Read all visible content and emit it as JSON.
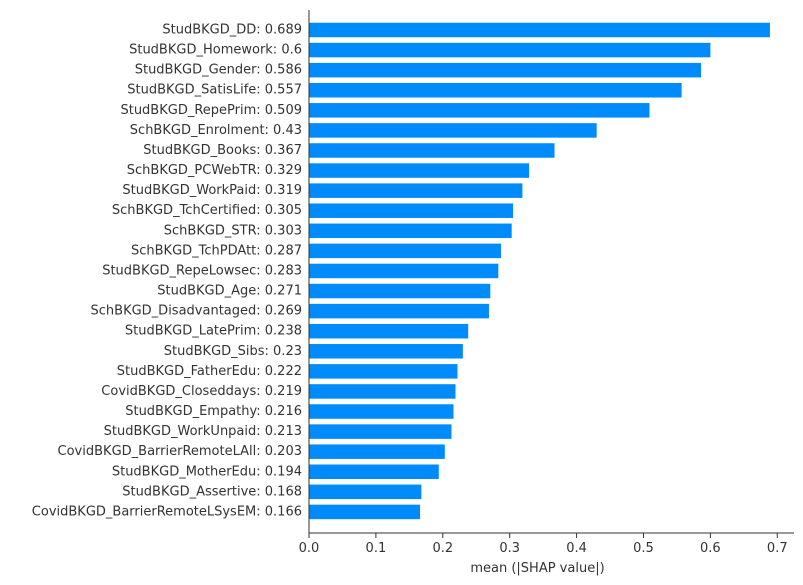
{
  "chart_data": {
    "type": "bar",
    "orientation": "horizontal",
    "categories": [
      "StudBKGD_DD: 0.689",
      "StudBKGD_Homework: 0.6",
      "StudBKGD_Gender: 0.586",
      "StudBKGD_SatisLife: 0.557",
      "StudBKGD_RepePrim: 0.509",
      "SchBKGD_Enrolment: 0.43",
      "StudBKGD_Books: 0.367",
      "SchBKGD_PCWebTR: 0.329",
      "StudBKGD_WorkPaid: 0.319",
      "SchBKGD_TchCertified: 0.305",
      "SchBKGD_STR: 0.303",
      "SchBKGD_TchPDAtt: 0.287",
      "StudBKGD_RepeLowsec: 0.283",
      "StudBKGD_Age: 0.271",
      "SchBKGD_Disadvantaged: 0.269",
      "StudBKGD_LatePrim: 0.238",
      "StudBKGD_Sibs: 0.23",
      "StudBKGD_FatherEdu: 0.222",
      "CovidBKGD_Closeddays: 0.219",
      "StudBKGD_Empathy: 0.216",
      "StudBKGD_WorkUnpaid: 0.213",
      "CovidBKGD_BarrierRemoteLAll: 0.203",
      "StudBKGD_MotherEdu: 0.194",
      "StudBKGD_Assertive: 0.168",
      "CovidBKGD_BarrierRemoteLSysEM: 0.166"
    ],
    "values": [
      0.689,
      0.6,
      0.586,
      0.557,
      0.509,
      0.43,
      0.367,
      0.329,
      0.319,
      0.305,
      0.303,
      0.287,
      0.283,
      0.271,
      0.269,
      0.238,
      0.23,
      0.222,
      0.219,
      0.216,
      0.213,
      0.203,
      0.194,
      0.168,
      0.166
    ],
    "xlabel": "mean (|SHAP value|)",
    "xlim": [
      0,
      0.725
    ],
    "xticks": [
      "0.0",
      "0.1",
      "0.2",
      "0.3",
      "0.4",
      "0.5",
      "0.6",
      "0.7"
    ],
    "bar_color": "#008bfb",
    "axis_color": "#333333",
    "grid": false
  }
}
